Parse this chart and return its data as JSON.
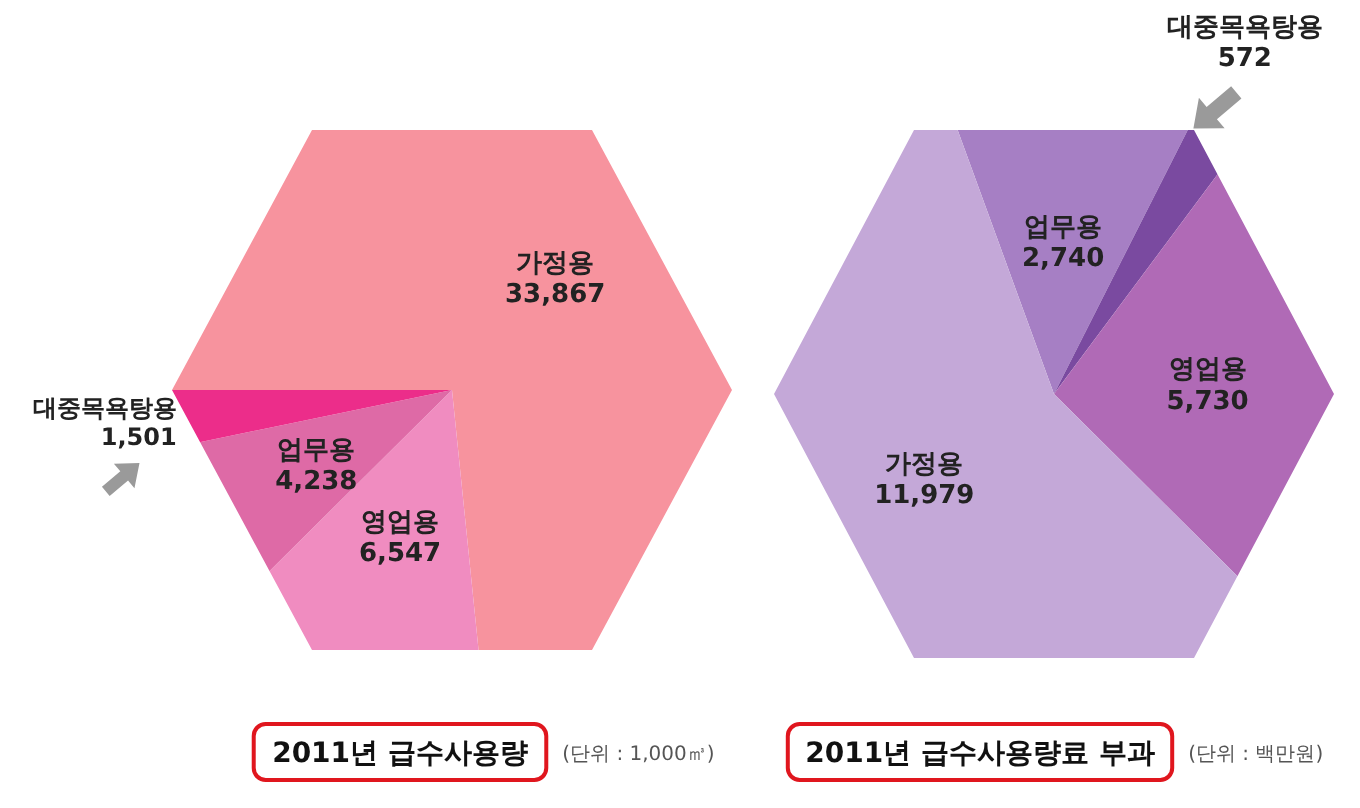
{
  "chart_data": [
    {
      "type": "pie",
      "title": "2011년 급수사용량",
      "subtitle": "(단위 : 1,000㎥)",
      "categories": [
        "가정용",
        "영업용",
        "업무용",
        "대중목욕탕용"
      ],
      "values": [
        33867,
        6547,
        4238,
        1501
      ],
      "colors": [
        "#f7939e",
        "#f08cc0",
        "#de6aa6",
        "#ec2d8a"
      ],
      "value_labels": [
        "33,867",
        "6,547",
        "4,238",
        "1,501"
      ]
    },
    {
      "type": "pie",
      "title": "2011년 급수사용량료 부과",
      "subtitle": "(단위 : 백만원)",
      "categories": [
        "업무용",
        "대중목욕탕용",
        "영업용",
        "가정용"
      ],
      "values": [
        2740,
        572,
        5730,
        11979
      ],
      "colors": [
        "#a67fc4",
        "#7a4aa0",
        "#b06ab6",
        "#c4a8d8"
      ],
      "value_labels": [
        "2,740",
        "572",
        "5,730",
        "11,979"
      ]
    }
  ]
}
